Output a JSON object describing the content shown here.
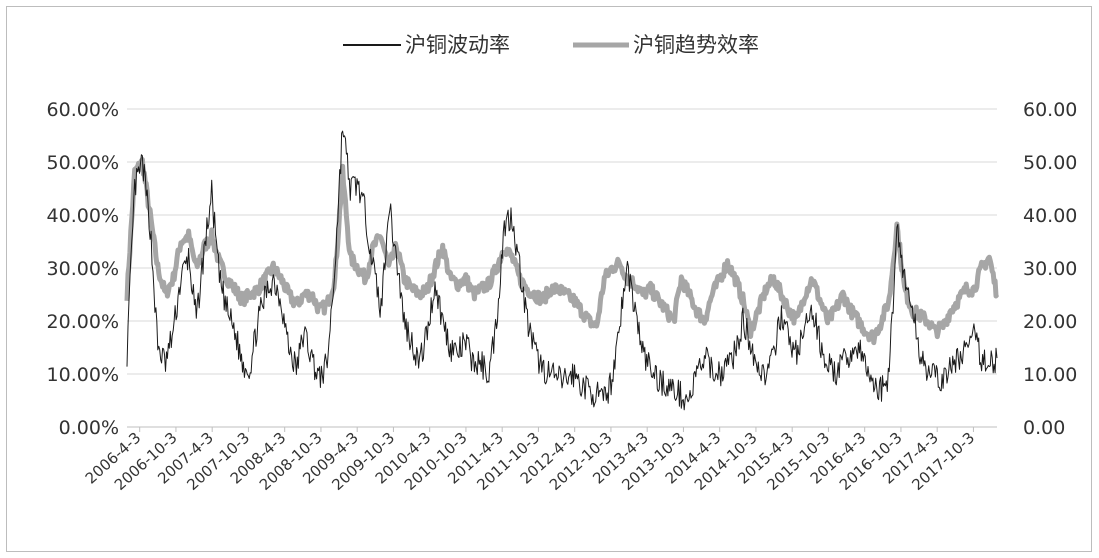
{
  "chart_data": {
    "type": "line",
    "legend": {
      "position": "top"
    },
    "grid": true,
    "left_axis": {
      "ticks": [
        "0.00%",
        "10.00%",
        "20.00%",
        "30.00%",
        "40.00%",
        "50.00%",
        "60.00%"
      ],
      "range": [
        0,
        60
      ]
    },
    "right_axis": {
      "ticks": [
        "0.00",
        "10.00",
        "20.00",
        "30.00",
        "40.00",
        "50.00",
        "60.00"
      ],
      "range": [
        0,
        60
      ]
    },
    "x_axis": {
      "tick_labels": [
        "2006-4-3",
        "2006-10-3",
        "2007-4-3",
        "2007-10-3",
        "2008-4-3",
        "2008-10-3",
        "2009-4-3",
        "2009-10-3",
        "2010-4-3",
        "2010-10-3",
        "2011-4-3",
        "2011-10-3",
        "2012-4-3",
        "2012-10-3",
        "2013-4-3",
        "2013-10-3",
        "2014-4-3",
        "2014-10-3",
        "2015-4-3",
        "2015-10-3",
        "2016-4-3",
        "2016-10-3",
        "2017-4-3",
        "2017-10-3"
      ]
    },
    "series": [
      {
        "name": "沪铜波动率",
        "color": "#1a1a1a",
        "axis": "left",
        "unit": "percent",
        "values": [
          14,
          45,
          50,
          38,
          15,
          12,
          18,
          28,
          32,
          20,
          33,
          44,
          28,
          22,
          18,
          12,
          11,
          20,
          25,
          28,
          24,
          15,
          11,
          18,
          13,
          9,
          12,
          30,
          57,
          45,
          46,
          40,
          30,
          22,
          42,
          32,
          20,
          16,
          12,
          18,
          27,
          20,
          15,
          14,
          16,
          12,
          12,
          10,
          20,
          38,
          40,
          30,
          20,
          14,
          11,
          10,
          9,
          9,
          10,
          8,
          7,
          6,
          5,
          9,
          20,
          30,
          22,
          14,
          11,
          9,
          8,
          7,
          6,
          5,
          10,
          13,
          11,
          10,
          12,
          14,
          20,
          16,
          11,
          10,
          13,
          22,
          16,
          14,
          18,
          22,
          16,
          12,
          10,
          12,
          14,
          15,
          11,
          8,
          7,
          10,
          38,
          28,
          22,
          14,
          11,
          9,
          9,
          11,
          13,
          15,
          17,
          13,
          12,
          13
        ]
      },
      {
        "name": "沪铜趋势效率",
        "color": "#a6a6a6",
        "axis": "right",
        "unit": "value",
        "values": [
          25,
          48,
          50,
          40,
          30,
          25,
          28,
          35,
          36,
          30,
          34,
          36,
          31,
          28,
          26,
          24,
          25,
          26,
          28,
          30,
          28,
          25,
          23,
          25,
          25,
          22,
          23,
          28,
          48,
          32,
          30,
          28,
          34,
          36,
          30,
          34,
          28,
          26,
          25,
          26,
          30,
          34,
          28,
          27,
          28,
          25,
          26,
          27,
          30,
          34,
          32,
          28,
          26,
          25,
          24,
          26,
          26,
          25,
          24,
          22,
          20,
          19,
          28,
          30,
          31,
          28,
          27,
          25,
          26,
          24,
          22,
          20,
          28,
          25,
          22,
          20,
          25,
          28,
          31,
          28,
          24,
          18,
          22,
          26,
          28,
          25,
          22,
          20,
          25,
          28,
          24,
          20,
          22,
          25,
          22,
          20,
          18,
          17,
          20,
          24,
          38,
          26,
          22,
          21,
          20,
          18,
          19,
          22,
          24,
          26,
          26,
          30,
          32,
          25
        ]
      }
    ]
  }
}
